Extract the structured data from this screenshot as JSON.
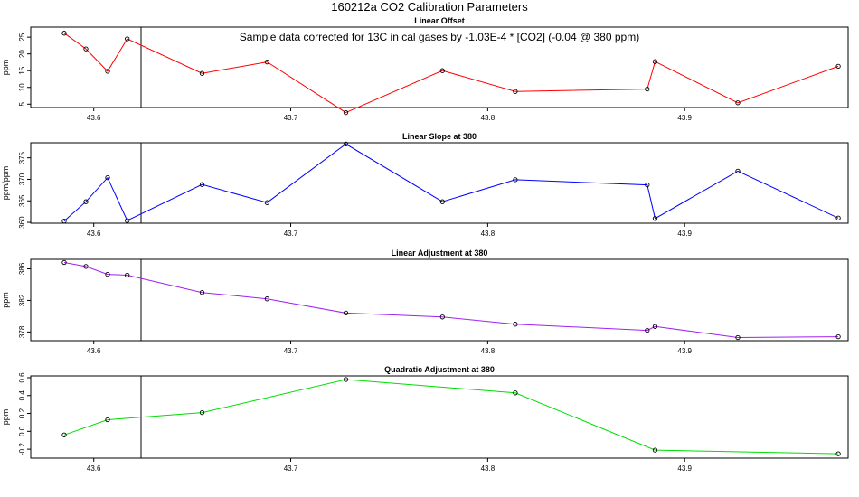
{
  "title": "160212a   CO2 Calibration Parameters",
  "chart_data": [
    {
      "type": "line",
      "title": "Linear Offset",
      "ylabel": "ppm",
      "annotation": "Sample data corrected for 13C in cal gases by -1.03E-4 * [CO2] (-0.04 @ 380 ppm)",
      "color": "#ff0000",
      "xlim": [
        43.568,
        43.983
      ],
      "ylim": [
        4.0,
        28.0
      ],
      "xticks": [
        43.6,
        43.7,
        43.8,
        43.9
      ],
      "yticks": [
        5,
        10,
        15,
        20,
        25
      ],
      "vline": 43.624,
      "x": [
        43.585,
        43.596,
        43.607,
        43.617,
        43.655,
        43.688,
        43.728,
        43.777,
        43.814,
        43.881,
        43.885,
        43.927,
        43.978
      ],
      "y": [
        26.2,
        21.5,
        14.8,
        24.5,
        14.2,
        17.6,
        2.5,
        15.0,
        8.8,
        9.5,
        17.7,
        5.4,
        16.3
      ]
    },
    {
      "type": "line",
      "title": "Linear Slope at 380",
      "ylabel": "ppm/ppm",
      "color": "#0000ff",
      "xlim": [
        43.568,
        43.983
      ],
      "ylim": [
        359.8,
        378.5
      ],
      "xticks": [
        43.6,
        43.7,
        43.8,
        43.9
      ],
      "yticks": [
        360,
        365,
        370,
        375
      ],
      "vline": 43.624,
      "x": [
        43.585,
        43.596,
        43.607,
        43.617,
        43.655,
        43.688,
        43.728,
        43.777,
        43.814,
        43.881,
        43.885,
        43.927,
        43.978
      ],
      "y": [
        360.3,
        364.8,
        370.4,
        360.4,
        368.8,
        364.6,
        378.2,
        364.8,
        369.9,
        368.7,
        360.9,
        371.9,
        361.0
      ]
    },
    {
      "type": "line",
      "title": "Linear Adjustment at 380",
      "ylabel": "ppm",
      "color": "#a020f0",
      "xlim": [
        43.568,
        43.983
      ],
      "ylim": [
        376.9,
        387.2
      ],
      "xticks": [
        43.6,
        43.7,
        43.8,
        43.9
      ],
      "yticks": [
        378,
        382,
        386
      ],
      "vline": 43.624,
      "x": [
        43.585,
        43.596,
        43.607,
        43.617,
        43.655,
        43.688,
        43.728,
        43.777,
        43.814,
        43.881,
        43.885,
        43.927,
        43.978
      ],
      "y": [
        386.8,
        386.3,
        385.3,
        385.2,
        383.0,
        382.2,
        380.4,
        379.9,
        379.0,
        378.2,
        378.7,
        377.3,
        377.4
      ]
    },
    {
      "type": "line",
      "title": "Quadratic Adjustment at 380",
      "ylabel": "ppm",
      "color": "#00dd00",
      "xlim": [
        43.568,
        43.983
      ],
      "ylim": [
        -0.3,
        0.62
      ],
      "xticks": [
        43.6,
        43.7,
        43.8,
        43.9
      ],
      "yticks": [
        -0.2,
        0.0,
        0.2,
        0.4,
        0.6
      ],
      "ytick_labels": [
        "-0.2",
        "0.0",
        "0.2",
        "0.4",
        "0.6"
      ],
      "vline": 43.624,
      "x": [
        43.585,
        43.607,
        43.655,
        43.728,
        43.814,
        43.885,
        43.978
      ],
      "y": [
        -0.04,
        0.13,
        0.21,
        0.58,
        0.43,
        -0.21,
        -0.25
      ]
    }
  ]
}
